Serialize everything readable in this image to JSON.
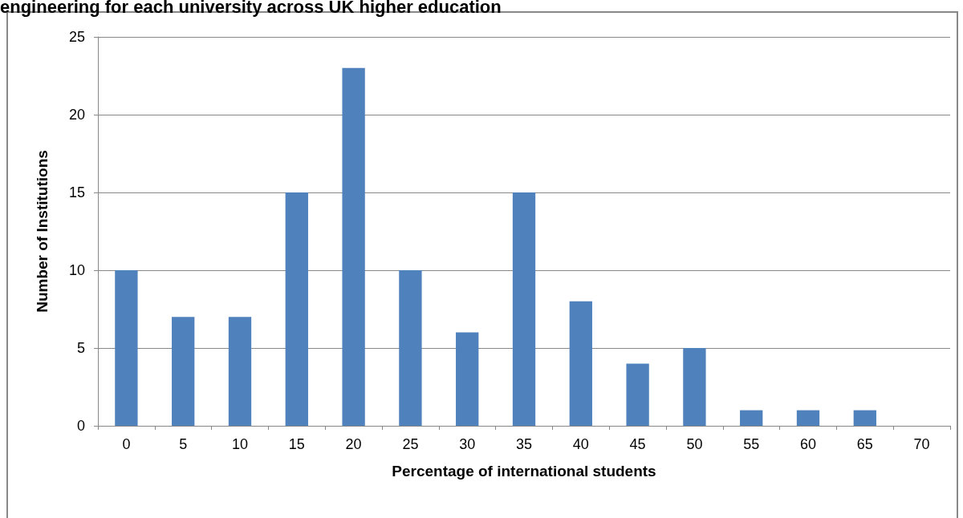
{
  "chart_data": {
    "type": "bar",
    "title": "engineering for each university across UK higher education",
    "xlabel": "Percentage of international students",
    "ylabel": "Number of Institutions",
    "categories": [
      "0",
      "5",
      "10",
      "15",
      "20",
      "25",
      "30",
      "35",
      "40",
      "45",
      "50",
      "55",
      "60",
      "65",
      "70"
    ],
    "values": [
      10,
      7,
      7,
      15,
      23,
      10,
      6,
      15,
      8,
      4,
      5,
      1,
      1,
      1,
      0
    ],
    "color": "#4f81bd",
    "ylim": [
      0,
      25
    ],
    "yticks": [
      0,
      5,
      10,
      15,
      20,
      25
    ],
    "grid": "y"
  }
}
